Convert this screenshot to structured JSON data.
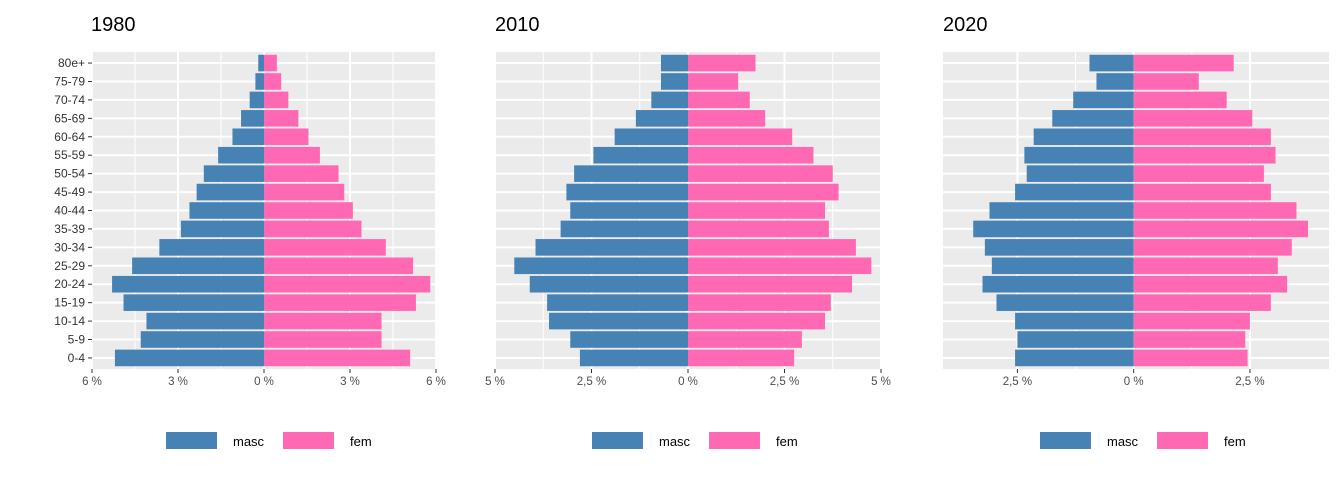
{
  "chart_data": [
    {
      "type": "bar",
      "orientation": "horizontal",
      "subtype": "population-pyramid",
      "title": "1980",
      "categories": [
        "0-4",
        "5-9",
        "10-14",
        "15-19",
        "20-24",
        "25-29",
        "30-34",
        "35-39",
        "40-44",
        "45-49",
        "50-54",
        "55-59",
        "60-64",
        "65-69",
        "70-74",
        "75-79",
        "80e+"
      ],
      "series": [
        {
          "name": "masc",
          "values": [
            -5.2,
            -4.3,
            -4.1,
            -4.9,
            -5.3,
            -4.6,
            -3.65,
            -2.9,
            -2.6,
            -2.35,
            -2.1,
            -1.6,
            -1.1,
            -0.8,
            -0.5,
            -0.3,
            -0.2
          ]
        },
        {
          "name": "fem",
          "values": [
            5.1,
            4.1,
            4.1,
            5.3,
            5.8,
            5.2,
            4.25,
            3.4,
            3.1,
            2.8,
            2.6,
            1.95,
            1.55,
            1.2,
            0.85,
            0.6,
            0.45
          ]
        }
      ],
      "xlim": [
        -6.0,
        6.0
      ],
      "xticks": [
        -6,
        -3,
        0,
        3,
        6
      ],
      "xtick_labels": [
        "6 %",
        "3 %",
        "0 %",
        "3 %",
        "6 %"
      ],
      "show_y_labels": true,
      "grid": true
    },
    {
      "type": "bar",
      "orientation": "horizontal",
      "subtype": "population-pyramid",
      "title": "2010",
      "categories": [
        "0-4",
        "5-9",
        "10-14",
        "15-19",
        "20-24",
        "25-29",
        "30-34",
        "35-39",
        "40-44",
        "45-49",
        "50-54",
        "55-59",
        "60-64",
        "65-69",
        "70-74",
        "75-79",
        "80e+"
      ],
      "series": [
        {
          "name": "masc",
          "values": [
            -2.8,
            -3.05,
            -3.6,
            -3.65,
            -4.1,
            -4.5,
            -3.95,
            -3.3,
            -3.05,
            -3.15,
            -2.95,
            -2.45,
            -1.9,
            -1.35,
            -0.95,
            -0.7,
            -0.7
          ]
        },
        {
          "name": "fem",
          "values": [
            2.75,
            2.95,
            3.55,
            3.7,
            4.25,
            4.75,
            4.35,
            3.65,
            3.55,
            3.9,
            3.75,
            3.25,
            2.7,
            2.0,
            1.6,
            1.3,
            1.75
          ]
        }
      ],
      "xlim": [
        -5.0,
        5.0
      ],
      "xticks": [
        -5,
        -2.5,
        0,
        2.5,
        5
      ],
      "xtick_labels": [
        "5 %",
        "2,5 %",
        "0 %",
        "2,5 %",
        "5 %"
      ],
      "show_y_labels": false,
      "grid": true
    },
    {
      "type": "bar",
      "orientation": "horizontal",
      "subtype": "population-pyramid",
      "title": "2020",
      "categories": [
        "0-4",
        "5-9",
        "10-14",
        "15-19",
        "20-24",
        "25-29",
        "30-34",
        "35-39",
        "40-44",
        "45-49",
        "50-54",
        "55-59",
        "60-64",
        "65-69",
        "70-74",
        "75-79",
        "80e+"
      ],
      "series": [
        {
          "name": "masc",
          "values": [
            -2.55,
            -2.5,
            -2.55,
            -2.95,
            -3.25,
            -3.05,
            -3.2,
            -3.45,
            -3.1,
            -2.55,
            -2.3,
            -2.35,
            -2.15,
            -1.75,
            -1.3,
            -0.8,
            -0.95
          ]
        },
        {
          "name": "fem",
          "values": [
            2.45,
            2.4,
            2.5,
            2.95,
            3.3,
            3.1,
            3.4,
            3.75,
            3.5,
            2.95,
            2.8,
            3.05,
            2.95,
            2.55,
            2.0,
            1.4,
            2.15
          ]
        }
      ],
      "xlim": [
        -4.1,
        4.2
      ],
      "xticks": [
        -2.5,
        0,
        2.5
      ],
      "xtick_labels": [
        "2,5 %",
        "0 %",
        "2,5 %"
      ],
      "show_y_labels": false,
      "grid": true
    }
  ],
  "legend": {
    "items": [
      {
        "label": "masc",
        "color": "#4682b4"
      },
      {
        "label": "fem",
        "color": "#ff69b4"
      }
    ]
  },
  "colors": {
    "panel_bg": "#ebebeb",
    "grid": "#ffffff",
    "masc": "#4682b4",
    "fem": "#ff69b4"
  }
}
